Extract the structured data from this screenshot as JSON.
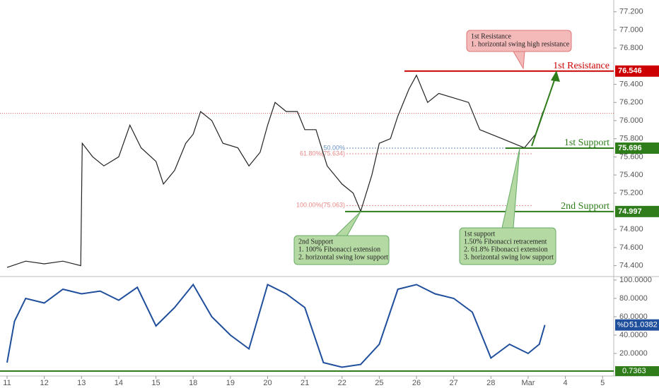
{
  "chart_data": [
    {
      "type": "line",
      "xlim": [
        -0.19,
        16.3
      ],
      "ylim": [
        74.28,
        77.33
      ],
      "yticks": [
        {
          "value": 77.2,
          "label": "77.200"
        },
        {
          "value": 77.0,
          "label": "77.000"
        },
        {
          "value": 76.8,
          "label": "76.800"
        },
        {
          "value": 76.4,
          "label": "76.400"
        },
        {
          "value": 76.2,
          "label": "76.200"
        },
        {
          "value": 76.0,
          "label": "76.000"
        },
        {
          "value": 75.8,
          "label": "75.800"
        },
        {
          "value": 75.6,
          "label": "75.600"
        },
        {
          "value": 75.4,
          "label": "75.400"
        },
        {
          "value": 75.2,
          "label": "75.200"
        },
        {
          "value": 74.8,
          "label": "74.800"
        },
        {
          "value": 74.6,
          "label": "74.600"
        },
        {
          "value": 74.4,
          "label": "74.400"
        }
      ],
      "series": [
        {
          "color": "#222222",
          "x": [
            0,
            0.5,
            1,
            1.5,
            1.98,
            2.02,
            2.3,
            2.6,
            3.0,
            3.3,
            3.6,
            4.0,
            4.2,
            4.5,
            4.8,
            5.0,
            5.2,
            5.5,
            5.8,
            6.2,
            6.5,
            6.8,
            7.0,
            7.2,
            7.5,
            7.8,
            8.0,
            8.3,
            8.6,
            9.0,
            9.3,
            9.5,
            9.8,
            10.0,
            10.3,
            10.5,
            10.8,
            11.0,
            11.3,
            11.6,
            12.0,
            12.4,
            12.7,
            13.0,
            13.3,
            13.6,
            13.9,
            14.2,
            14.4
          ],
          "values": [
            74.38,
            74.45,
            74.42,
            74.45,
            74.4,
            75.75,
            75.6,
            75.5,
            75.6,
            75.95,
            75.7,
            75.55,
            75.3,
            75.45,
            75.75,
            75.85,
            76.1,
            76.0,
            75.75,
            75.7,
            75.5,
            75.65,
            75.95,
            76.2,
            76.1,
            76.1,
            75.9,
            75.9,
            75.5,
            75.3,
            75.2,
            75.0,
            75.4,
            75.75,
            75.8,
            76.05,
            76.35,
            76.5,
            76.2,
            76.3,
            76.25,
            76.2,
            75.9,
            75.85,
            75.8,
            75.75,
            75.7,
            75.85,
            76.1
          ]
        }
      ],
      "last_price": 76.08,
      "last_price_color": "#e06060",
      "levels": [
        {
          "name": "1st Resistance",
          "value": 76.546,
          "color": "#cc0000"
        },
        {
          "name": "1st Support",
          "value": 75.696,
          "color": "#2e7d1a"
        },
        {
          "name": "2nd Support",
          "value": 74.997,
          "color": "#2e7d1a"
        }
      ],
      "fibonacci": [
        {
          "label": "50.00%",
          "value": 75.696,
          "color": "#6a8fc4"
        },
        {
          "label": "61.80%(75.634)",
          "value": 75.634,
          "color": "#e88888"
        },
        {
          "label": "100.00%(75.063)",
          "value": 75.063,
          "color": "#e88888"
        }
      ],
      "callouts": [
        {
          "lines": [
            "1st Resistance",
            "1. horizontal swing high resistance"
          ],
          "color": "#f4b9b9",
          "border": "#d77"
        },
        {
          "lines": [
            "2nd Support",
            "1. 100% Fibonacci extension",
            "2. horizontal swing low support"
          ],
          "color": "#b5d9a3",
          "border": "#6a6"
        },
        {
          "lines": [
            "1st support",
            "1.50% Fibonacci retracement",
            "2. 61.8% Fibonacci extension",
            "3. horizontal swing low support"
          ],
          "color": "#b5d9a3",
          "border": "#6a6"
        }
      ]
    },
    {
      "type": "line",
      "xlim": [
        -0.19,
        16.3
      ],
      "ylim": [
        -4.6,
        103.8
      ],
      "yticks": [
        {
          "value": 100,
          "label": "100.0000"
        },
        {
          "value": 80,
          "label": "80.0000"
        },
        {
          "value": 60,
          "label": "60.0000"
        },
        {
          "value": 40,
          "label": "40.0000"
        },
        {
          "value": 20,
          "label": "20.0000"
        }
      ],
      "xticks": [
        {
          "value": 0,
          "label": "11"
        },
        {
          "value": 1,
          "label": "12"
        },
        {
          "value": 2,
          "label": "13"
        },
        {
          "value": 3,
          "label": "14"
        },
        {
          "value": 4,
          "label": "15"
        },
        {
          "value": 5,
          "label": "18"
        },
        {
          "value": 6,
          "label": "19"
        },
        {
          "value": 7,
          "label": "20"
        },
        {
          "value": 8,
          "label": "21"
        },
        {
          "value": 9,
          "label": "22"
        },
        {
          "value": 10,
          "label": "25"
        },
        {
          "value": 11,
          "label": "26"
        },
        {
          "value": 12,
          "label": "27"
        },
        {
          "value": 13,
          "label": "28"
        },
        {
          "value": 14,
          "label": "Mar"
        },
        {
          "value": 15,
          "label": "4"
        },
        {
          "value": 16,
          "label": "5"
        }
      ],
      "series": [
        {
          "name": "%D",
          "color": "#1f4e9c",
          "x": [
            0,
            0.2,
            0.5,
            1,
            1.5,
            2,
            2.5,
            3,
            3.5,
            4,
            4.5,
            5,
            5.5,
            6,
            6.5,
            7,
            7.5,
            8,
            8.5,
            9,
            9.5,
            10,
            10.5,
            11,
            11.5,
            12,
            12.5,
            13,
            13.5,
            14,
            14.3,
            14.45
          ],
          "values": [
            10,
            55,
            80,
            75,
            90,
            85,
            88,
            78,
            92,
            50,
            70,
            95,
            60,
            40,
            25,
            95,
            85,
            70,
            10,
            5,
            8,
            30,
            90,
            95,
            85,
            80,
            65,
            15,
            30,
            20,
            30,
            51.0382
          ]
        }
      ],
      "floor": {
        "value": 0.7363,
        "color": "#2e7d1a"
      }
    }
  ]
}
